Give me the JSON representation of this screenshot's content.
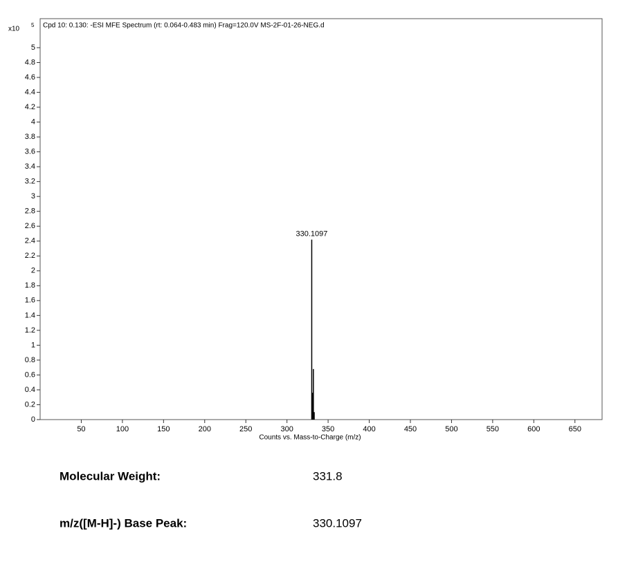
{
  "chart_data": {
    "type": "stem",
    "title": "Cpd 10: 0.130: -ESI MFE Spectrum (rt: 0.064-0.483 min) Frag=120.0V MS-2F-01-26-NEG.d",
    "x_label": "Counts vs. Mass-to-Charge (m/z)",
    "y_scale_base": "x10",
    "y_scale_exponent": "5",
    "x": [
      330.1097,
      331.1,
      332.1,
      333.1
    ],
    "values": [
      2.42,
      0.36,
      0.68,
      0.1
    ],
    "color": "#000000",
    "annotations": [
      {
        "text": "330.1097",
        "x": 330.1097,
        "y": 2.42
      }
    ],
    "xlim": [
      0,
      683
    ],
    "ylim": [
      0,
      5.39
    ],
    "xticks": [
      50,
      100,
      150,
      200,
      250,
      300,
      350,
      400,
      450,
      500,
      550,
      600,
      650
    ],
    "yticks": [
      0,
      0.2,
      0.4,
      0.6,
      0.8,
      1,
      1.2,
      1.4,
      1.6,
      1.8,
      2,
      2.2,
      2.4,
      2.6,
      2.8,
      3,
      3.2,
      3.4,
      3.6,
      3.8,
      4,
      4.2,
      4.4,
      4.6,
      4.8,
      5
    ],
    "grid": false
  },
  "details": [
    {
      "label": "Molecular Weight:",
      "value": "331.8"
    },
    {
      "label": "m/z([M-H]-) Base Peak:",
      "value": "330.1097"
    }
  ]
}
